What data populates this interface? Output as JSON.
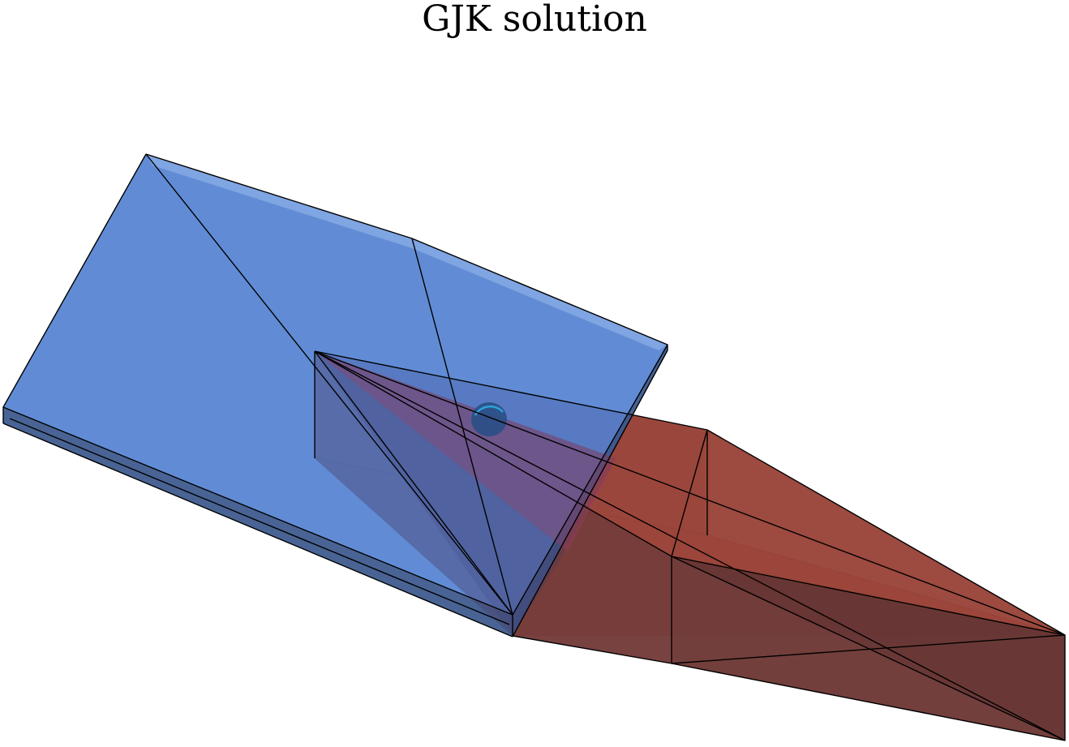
{
  "figure": {
    "title": "GJK solution",
    "objects": [
      {
        "name": "blue-slab",
        "shape": "box",
        "color": "#4a7acc",
        "opacity": 0.85
      },
      {
        "name": "red-frustum",
        "shape": "truncated-pyramid",
        "color": "#9c3a2e",
        "opacity": 0.85
      },
      {
        "name": "closest-point-marker",
        "shape": "sphere",
        "color": "#1a5f8c"
      }
    ]
  }
}
